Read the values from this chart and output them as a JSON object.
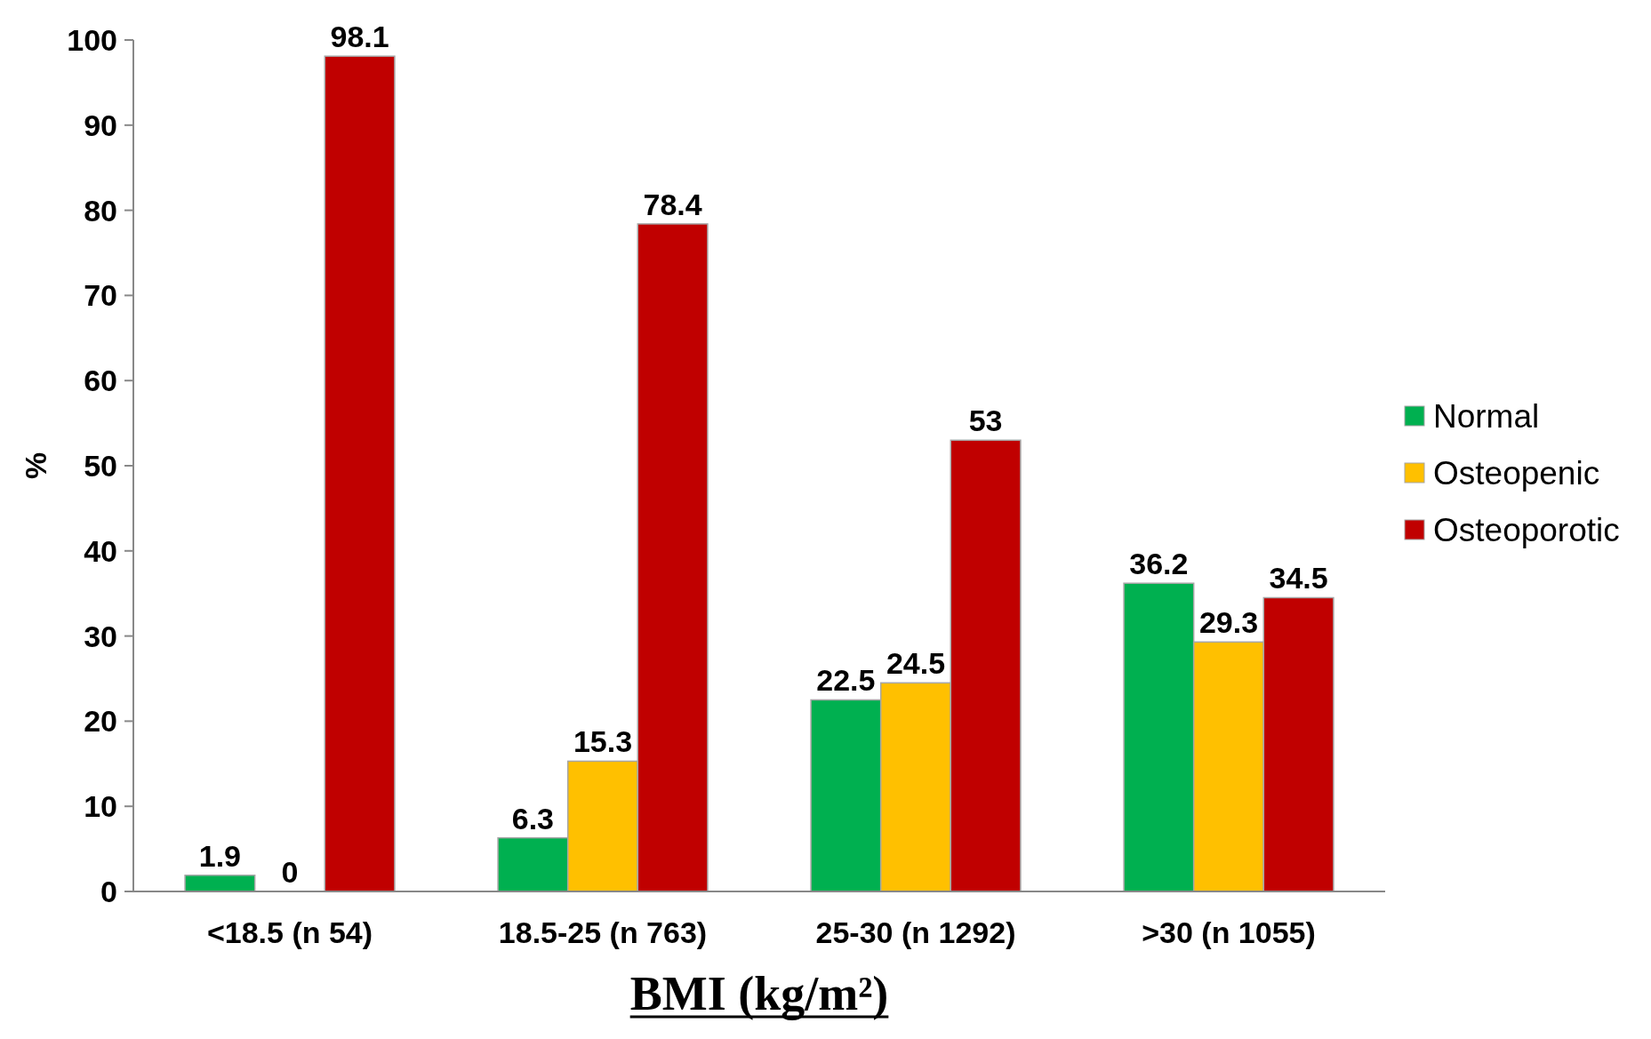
{
  "chart_data": {
    "type": "bar",
    "xlabel": "BMI (kg/m²)",
    "ylabel": "%",
    "categories": [
      "<18.5 (n 54)",
      "18.5-25 (n 763)",
      "25-30 (n 1292)",
      ">30 (n 1055)"
    ],
    "series": [
      {
        "name": "Normal",
        "color": "#00b050",
        "values": [
          1.9,
          6.3,
          22.5,
          36.2
        ]
      },
      {
        "name": "Osteopenic",
        "color": "#ffc000",
        "values": [
          0,
          15.3,
          24.5,
          29.3
        ]
      },
      {
        "name": "Osteoporotic",
        "color": "#c00000",
        "values": [
          98.1,
          78.4,
          53,
          34.5
        ]
      }
    ],
    "ylim": [
      0,
      100
    ],
    "yticks": [
      0,
      10,
      20,
      30,
      40,
      50,
      60,
      70,
      80,
      90,
      100
    ],
    "grid": false,
    "legend": "right",
    "data_labels": true
  }
}
